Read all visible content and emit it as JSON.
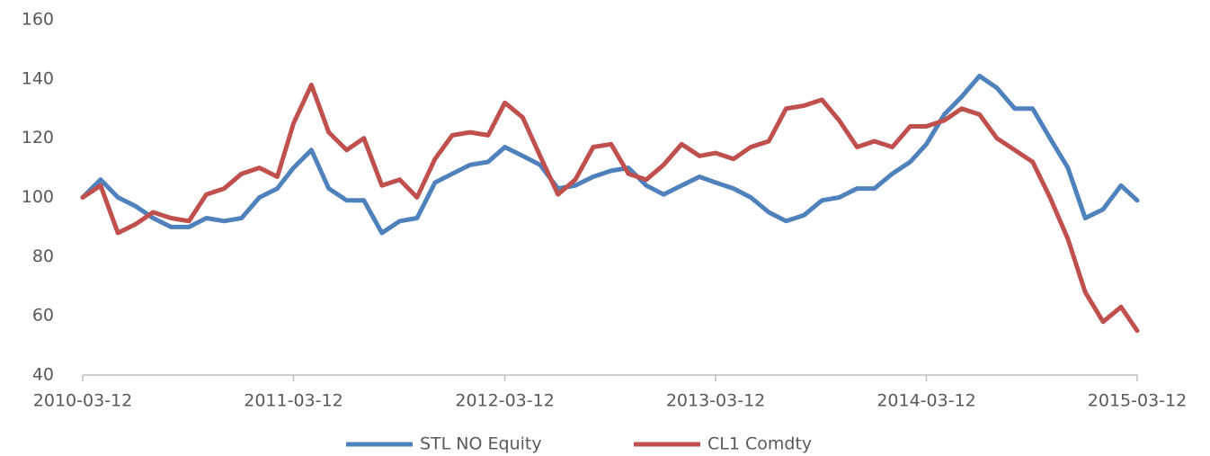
{
  "chart_data": {
    "type": "line",
    "x": [
      "2010-03-12",
      "2010-04-12",
      "2010-05-12",
      "2010-06-12",
      "2010-07-12",
      "2010-08-12",
      "2010-09-12",
      "2010-10-12",
      "2010-11-12",
      "2010-12-12",
      "2011-01-12",
      "2011-02-12",
      "2011-03-12",
      "2011-04-12",
      "2011-05-12",
      "2011-06-12",
      "2011-07-12",
      "2011-08-12",
      "2011-09-12",
      "2011-10-12",
      "2011-11-12",
      "2011-12-12",
      "2012-01-12",
      "2012-02-12",
      "2012-03-12",
      "2012-04-12",
      "2012-05-12",
      "2012-06-12",
      "2012-07-12",
      "2012-08-12",
      "2012-09-12",
      "2012-10-12",
      "2012-11-12",
      "2012-12-12",
      "2013-01-12",
      "2013-02-12",
      "2013-03-12",
      "2013-04-12",
      "2013-05-12",
      "2013-06-12",
      "2013-07-12",
      "2013-08-12",
      "2013-09-12",
      "2013-10-12",
      "2013-11-12",
      "2013-12-12",
      "2014-01-12",
      "2014-02-12",
      "2014-03-12",
      "2014-04-12",
      "2014-05-12",
      "2014-06-12",
      "2014-07-12",
      "2014-08-12",
      "2014-09-12",
      "2014-10-12",
      "2014-11-12",
      "2014-12-12",
      "2015-01-12",
      "2015-02-12",
      "2015-03-12"
    ],
    "series": [
      {
        "name": "STL NO Equity",
        "color": "#4f81bd",
        "values": [
          100,
          106,
          100,
          97,
          93,
          90,
          90,
          93,
          92,
          93,
          100,
          103,
          110,
          116,
          103,
          99,
          99,
          88,
          92,
          93,
          105,
          108,
          111,
          112,
          117,
          114,
          111,
          103,
          104,
          107,
          109,
          110,
          104,
          101,
          104,
          107,
          105,
          103,
          100,
          95,
          92,
          94,
          99,
          100,
          103,
          103,
          108,
          112,
          118,
          128,
          134,
          141,
          137,
          130,
          130,
          120,
          110,
          93,
          96,
          104,
          99
        ]
      },
      {
        "name": "CL1 Comdty",
        "color": "#c0504d",
        "values": [
          100,
          104,
          88,
          91,
          95,
          93,
          92,
          101,
          103,
          108,
          110,
          107,
          125,
          138,
          122,
          116,
          120,
          104,
          106,
          100,
          113,
          121,
          122,
          121,
          132,
          127,
          114,
          101,
          106,
          117,
          118,
          108,
          106,
          111,
          118,
          114,
          115,
          113,
          117,
          119,
          130,
          131,
          133,
          126,
          117,
          119,
          117,
          124,
          124,
          126,
          130,
          128,
          120,
          116,
          112,
          100,
          86,
          68,
          58,
          63,
          55
        ]
      }
    ],
    "xlim": [
      "2010-03-12",
      "2015-03-12"
    ],
    "xticks": [
      "2010-03-12",
      "2011-03-12",
      "2012-03-12",
      "2013-03-12",
      "2014-03-12",
      "2015-03-12"
    ],
    "ylim": [
      40,
      160
    ],
    "yticks": [
      40,
      60,
      80,
      100,
      120,
      140,
      160
    ],
    "grid": false,
    "legend": "bottom"
  }
}
